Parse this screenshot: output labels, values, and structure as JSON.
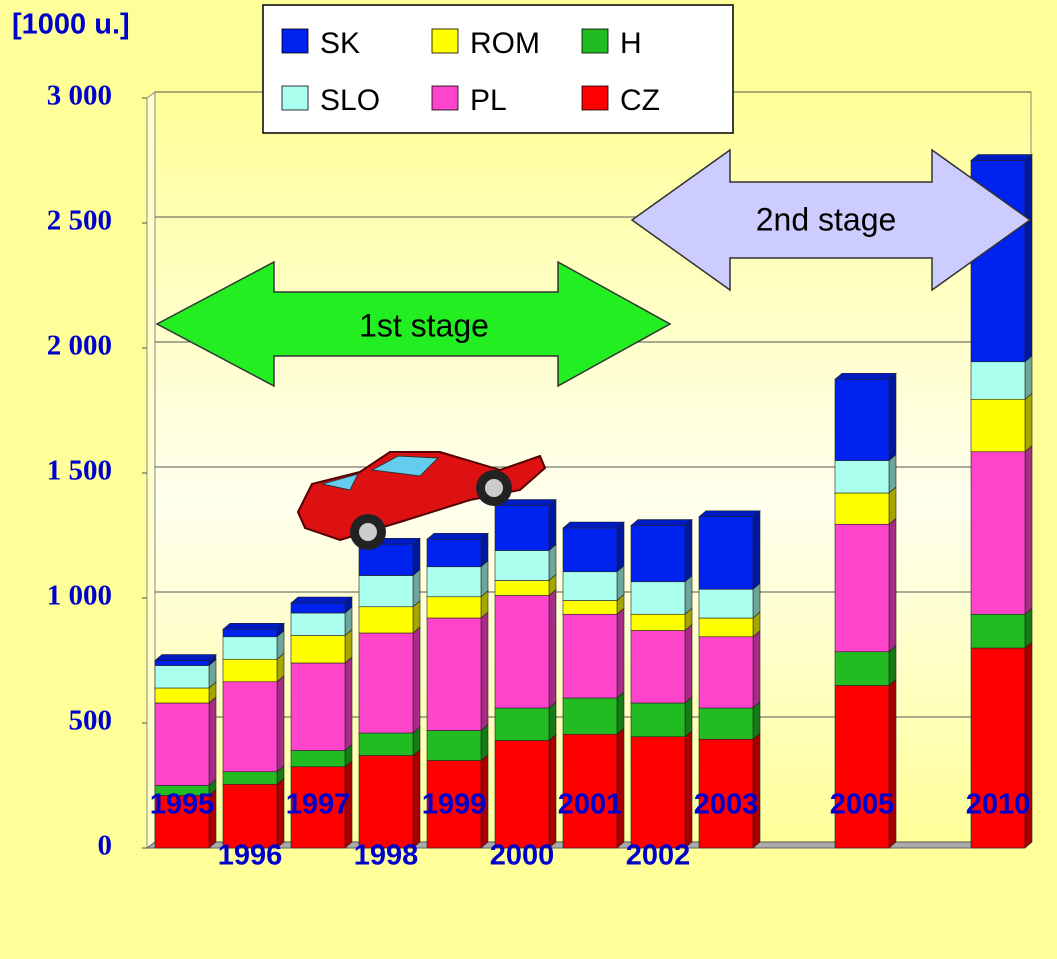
{
  "chart_data": {
    "type": "stacked_bar",
    "y_label": "[1000 u.]",
    "annotations": [
      "1st stage",
      "2nd stage"
    ],
    "categories": [
      "1995",
      "1996",
      "1997",
      "1998",
      "1999",
      "2000",
      "2001",
      "2002",
      "2003",
      null,
      "2005",
      null,
      "2010"
    ],
    "series": [
      {
        "name": "CZ",
        "color": "#ff0000",
        "values": [
          210,
          255,
          325,
          370,
          350,
          430,
          455,
          445,
          435,
          null,
          650,
          null,
          800
        ]
      },
      {
        "name": "H",
        "color": "#22bb22",
        "values": [
          40,
          50,
          65,
          90,
          120,
          130,
          145,
          135,
          125,
          null,
          135,
          null,
          135
        ]
      },
      {
        "name": "PL",
        "color": "#ff44cc",
        "values": [
          330,
          360,
          350,
          400,
          450,
          450,
          335,
          290,
          285,
          null,
          510,
          null,
          650
        ]
      },
      {
        "name": "ROM",
        "color": "#ffff00",
        "values": [
          60,
          90,
          110,
          105,
          85,
          60,
          55,
          65,
          75,
          null,
          125,
          null,
          210
        ]
      },
      {
        "name": "SLO",
        "color": "#aaffee",
        "values": [
          90,
          90,
          90,
          125,
          120,
          120,
          115,
          130,
          115,
          null,
          130,
          null,
          150
        ]
      },
      {
        "name": "SK",
        "color": "#0022ee",
        "values": [
          20,
          30,
          40,
          125,
          110,
          180,
          175,
          225,
          290,
          null,
          325,
          null,
          805
        ]
      }
    ],
    "ylim": [
      0,
      3000
    ],
    "yticks": [
      0,
      500,
      {
        "value": 1000,
        "label": "1 000"
      },
      {
        "value": 1500,
        "label": "1 500"
      },
      {
        "value": 2000,
        "label": "2 000"
      },
      {
        "value": 2500,
        "label": "2 500"
      },
      {
        "value": 3000,
        "label": "3 000"
      }
    ],
    "grid": true
  }
}
